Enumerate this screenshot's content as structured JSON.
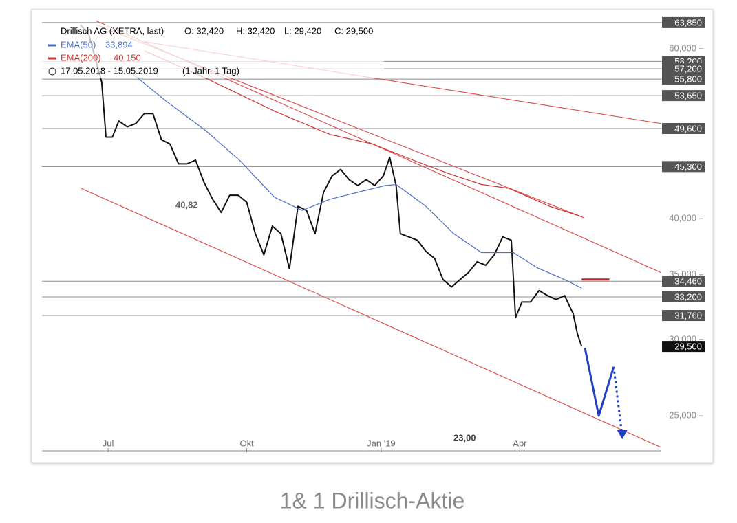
{
  "chart_data": {
    "type": "line",
    "title": "1& 1 Drillisch-Aktie",
    "header": {
      "open": "O: 32,420",
      "high": "H: 32,420",
      "low": "L: 29,420",
      "close": "C: 29,500",
      "period": "17.05.2018 - 15.05.2019",
      "interval": "(1 Jahr, 1 Tag)"
    },
    "xlim": [
      0,
      290
    ],
    "xticks": [
      {
        "value": 31,
        "label": "Jul"
      },
      {
        "value": 96,
        "label": "Okt"
      },
      {
        "value": 159,
        "label": "Jan '19"
      },
      {
        "value": 224,
        "label": "Apr"
      }
    ],
    "ylim": [
      23,
      65
    ],
    "ylog": true,
    "yticks": [
      {
        "value": 60,
        "label": "60,000"
      },
      {
        "value": 40,
        "label": "40,000"
      },
      {
        "value": 35,
        "label": "35,000"
      },
      {
        "value": 30,
        "label": "30,000"
      },
      {
        "value": 25,
        "label": "25,000"
      }
    ],
    "series": [
      {
        "name": "Drillisch AG (XETRA, last)",
        "color": "#111111",
        "x": [
          18,
          22,
          28,
          30,
          33,
          36,
          40,
          44,
          48,
          52,
          56,
          60,
          64,
          68,
          72,
          76,
          80,
          84,
          88,
          92,
          96,
          100,
          104,
          108,
          112,
          116,
          120,
          124,
          128,
          132,
          136,
          140,
          144,
          148,
          152,
          156,
          160,
          163,
          166,
          168,
          172,
          176,
          180,
          184,
          188,
          192,
          196,
          200,
          204,
          208,
          212,
          216,
          220,
          222,
          225,
          229,
          233,
          237,
          241,
          245,
          249,
          251,
          253
        ],
        "values": [
          63.5,
          62,
          55.4,
          48.6,
          48.6,
          50.5,
          49.8,
          50.2,
          51.4,
          51.4,
          48.3,
          47.8,
          45.6,
          45.6,
          46,
          43.6,
          41.9,
          40.6,
          42.3,
          42.3,
          41.6,
          38.6,
          36.7,
          39.3,
          38.6,
          35.5,
          41.2,
          40.8,
          38.6,
          42.6,
          44.3,
          45,
          43.9,
          43.3,
          43.9,
          43.3,
          44.3,
          46.3,
          43.3,
          38.6,
          38.3,
          38,
          37,
          36.4,
          34.6,
          34,
          34.6,
          35.2,
          36.1,
          35.8,
          36.7,
          38.3,
          38,
          31.6,
          32.8,
          32.8,
          33.7,
          33.3,
          33,
          33.3,
          31.9,
          30.4,
          29.5
        ]
      },
      {
        "name": "EMA(50)",
        "color": "#4a6fc7",
        "last_value": 33.894,
        "last_value_label": "33,894",
        "x": [
          42,
          58,
          77,
          93,
          109,
          122,
          135,
          148,
          161,
          166,
          180,
          193,
          206,
          221,
          232,
          245,
          253
        ],
        "values": [
          56.6,
          53,
          49.3,
          45.9,
          42.1,
          40.8,
          41.9,
          42.6,
          43.3,
          43.4,
          41.2,
          38.6,
          36.9,
          36.9,
          35.6,
          34.6,
          33.9
        ]
      },
      {
        "name": "EMA(200)",
        "color": "#cc3333",
        "last_value": 40.15,
        "last_value_label": "40,150",
        "x": [
          48,
          77,
          109,
          135,
          155,
          174,
          190,
          206,
          219,
          238,
          253
        ],
        "values": [
          59.7,
          55.9,
          51.7,
          48.9,
          47.8,
          46,
          44.6,
          43.4,
          43,
          41.2,
          40.2
        ]
      }
    ],
    "levels": [
      {
        "value": 63.85,
        "label": "63,850"
      },
      {
        "value": 58.2,
        "label": "58,200"
      },
      {
        "value": 57.2,
        "label": "57,200"
      },
      {
        "value": 55.8,
        "label": "55,800"
      },
      {
        "value": 53.65,
        "label": "53,650"
      },
      {
        "value": 49.6,
        "label": "49,600"
      },
      {
        "value": 45.3,
        "label": "45,300"
      },
      {
        "value": 34.46,
        "label": "34,460"
      },
      {
        "value": 33.2,
        "label": "33,200"
      },
      {
        "value": 31.76,
        "label": "31,760"
      }
    ],
    "last_price": {
      "value": 29.5,
      "label": "29,500"
    },
    "trendlines": [
      {
        "color": "#d9534f",
        "width": 1.2,
        "x": [
          18.4,
          290
        ],
        "values": [
          43,
          23.2
        ]
      },
      {
        "color": "#d9534f",
        "width": 1.2,
        "x": [
          25.5,
          290
        ],
        "values": [
          64.1,
          35.2
        ]
      },
      {
        "color": "#d9534f",
        "width": 1.2,
        "x": [
          25.5,
          254
        ],
        "values": [
          63.5,
          40.1
        ]
      },
      {
        "color": "#d9534f",
        "width": 1.2,
        "x": [
          48,
          290
        ],
        "values": [
          61,
          50.2
        ]
      },
      {
        "color": "#cc2222",
        "width": 3,
        "x": [
          253,
          266
        ],
        "values": [
          34.6,
          34.6
        ]
      }
    ],
    "projection": {
      "color": "#1f3fc4",
      "x": [
        254.5,
        261,
        268
      ],
      "values": [
        29.4,
        25,
        28.1
      ]
    },
    "projection_dotted": {
      "color": "#1f3fc4",
      "x": [
        268,
        272
      ],
      "values": [
        28.1,
        23.8
      ]
    },
    "annotations": [
      "40,82",
      "23,00"
    ]
  }
}
